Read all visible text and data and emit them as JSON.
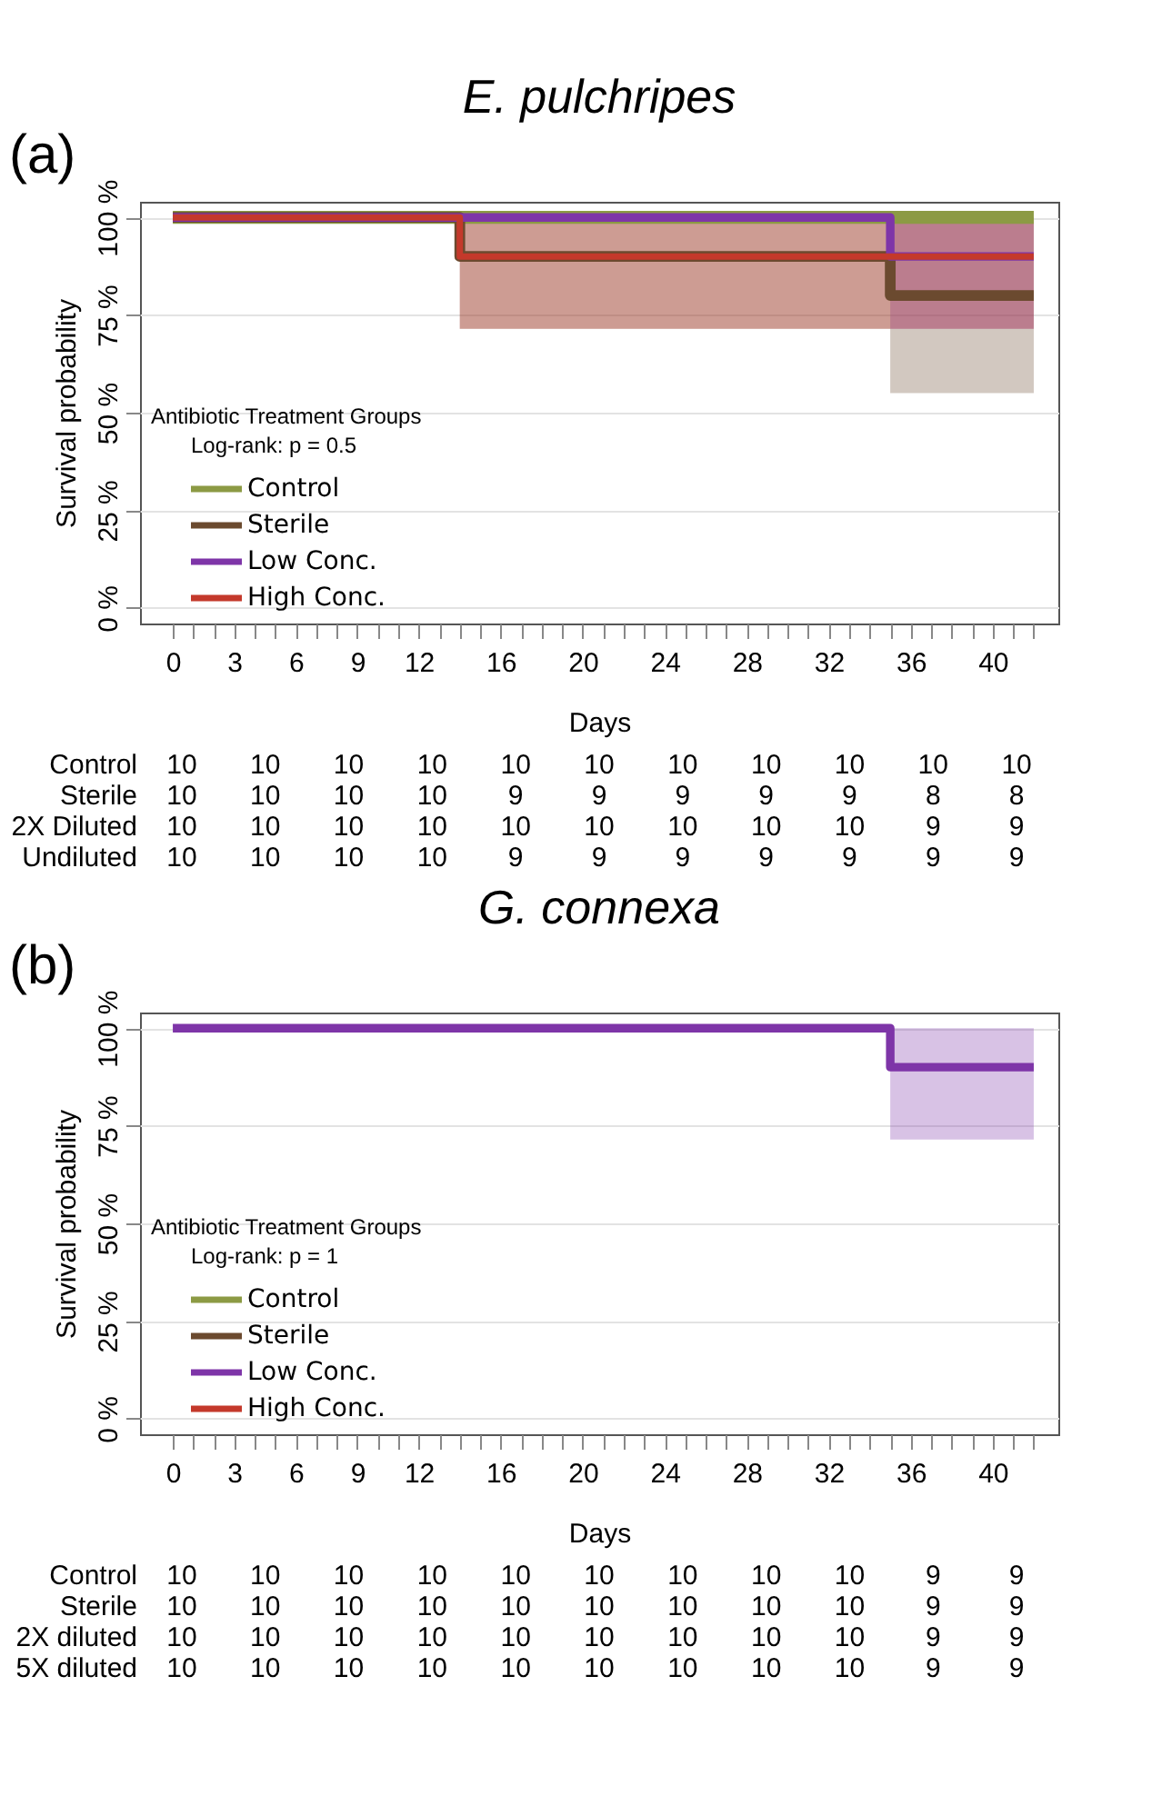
{
  "chart_data": [
    {
      "type": "step",
      "title": "E. pulchripes",
      "xlabel": "Days",
      "ylabel": "Survival probability",
      "legend_title": "Antibiotic Treatment Groups",
      "annotations": [
        "(a)",
        "Log-rank:  p = 0.5"
      ],
      "x": [
        0,
        14,
        35,
        42
      ],
      "series": [
        {
          "name": "Control",
          "color": "#8c9a44",
          "values": [
            100,
            100,
            100,
            100
          ]
        },
        {
          "name": "Sterile",
          "color": "#6b4a2f",
          "values": [
            100,
            90,
            80,
            80
          ],
          "lower": [
            null,
            71.5,
            55,
            55
          ],
          "upper": [
            null,
            100,
            100,
            100
          ]
        },
        {
          "name": "Low Conc.",
          "color": "#7e35a8",
          "values": [
            100,
            100,
            90,
            90
          ],
          "lower": [
            null,
            null,
            71.5,
            71.5
          ],
          "upper": [
            null,
            null,
            100,
            100
          ]
        },
        {
          "name": "High Conc.",
          "color": "#c4392b",
          "values": [
            100,
            90,
            90,
            90
          ],
          "lower": [
            null,
            71.5,
            71.5,
            71.5
          ],
          "upper": [
            null,
            100,
            100,
            100
          ]
        }
      ],
      "xlim": [
        -1.6,
        43.2
      ],
      "ylim": [
        -4,
        104
      ],
      "xticks": [
        0,
        {
          "value": 1,
          "label": null
        },
        {
          "value": 2,
          "label": null
        },
        3,
        {
          "value": 4,
          "label": null
        },
        {
          "value": 5,
          "label": null
        },
        6,
        {
          "value": 7,
          "label": null
        },
        {
          "value": 8,
          "label": null
        },
        9,
        {
          "value": 10,
          "label": null
        },
        {
          "value": 11,
          "label": null
        },
        12,
        {
          "value": 13,
          "label": null
        },
        {
          "value": 14,
          "label": null
        },
        {
          "value": 15,
          "label": null
        },
        16,
        {
          "value": 17,
          "label": null
        },
        {
          "value": 18,
          "label": null
        },
        {
          "value": 19,
          "label": null
        },
        20,
        {
          "value": 21,
          "label": null
        },
        {
          "value": 22,
          "label": null
        },
        {
          "value": 23,
          "label": null
        },
        24,
        {
          "value": 25,
          "label": null
        },
        {
          "value": 26,
          "label": null
        },
        {
          "value": 27,
          "label": null
        },
        28,
        {
          "value": 29,
          "label": null
        },
        {
          "value": 30,
          "label": null
        },
        {
          "value": 31,
          "label": null
        },
        32,
        {
          "value": 33,
          "label": null
        },
        {
          "value": 34,
          "label": null
        },
        {
          "value": 35,
          "label": null
        },
        36,
        {
          "value": 37,
          "label": null
        },
        {
          "value": 38,
          "label": null
        },
        {
          "value": 39,
          "label": null
        },
        40,
        {
          "value": 41,
          "label": null
        },
        {
          "value": 42,
          "label": null
        }
      ],
      "yticks": [
        {
          "value": 0,
          "label": "0 %"
        },
        {
          "value": 25,
          "label": "25 %"
        },
        {
          "value": 50,
          "label": "50 %"
        },
        {
          "value": 75,
          "label": "75 %"
        },
        {
          "value": 100,
          "label": "100 %"
        }
      ],
      "grid": "y",
      "legend": "bottom left"
    },
    {
      "type": "other",
      "y_categories": [
        "Control",
        "Sterile",
        "2X Diluted",
        "Undiluted"
      ],
      "cell_labels": [
        [
          "10",
          "10",
          "10",
          "10",
          "10",
          "10",
          "10",
          "10",
          "10",
          "10",
          "10"
        ],
        [
          "10",
          "10",
          "10",
          "10",
          "9",
          "9",
          "9",
          "9",
          "9",
          "8",
          "8"
        ],
        [
          "10",
          "10",
          "10",
          "10",
          "10",
          "10",
          "10",
          "10",
          "10",
          "9",
          "9"
        ],
        [
          "10",
          "10",
          "10",
          "10",
          "9",
          "9",
          "9",
          "9",
          "9",
          "9",
          "9"
        ]
      ]
    },
    {
      "type": "step",
      "title": "G. connexa",
      "xlabel": "Days",
      "ylabel": "Survival probability",
      "legend_title": "Antibiotic Treatment Groups",
      "annotations": [
        "(b)",
        "Log-rank:  p = 1"
      ],
      "x": [
        0,
        14,
        35,
        42
      ],
      "series": [
        {
          "name": "Control",
          "color": "#8c9a44",
          "values": [
            null,
            null,
            null,
            null
          ]
        },
        {
          "name": "Sterile",
          "color": "#6b4a2f",
          "values": [
            null,
            null,
            null,
            null
          ]
        },
        {
          "name": "Low Conc.",
          "color": "#7e35a8",
          "values": [
            100,
            100,
            90,
            90
          ],
          "lower": [
            null,
            null,
            71.5,
            71.5
          ],
          "upper": [
            null,
            null,
            100,
            100
          ]
        },
        {
          "name": "High Conc.",
          "color": "#c4392b",
          "values": [
            null,
            null,
            null,
            null
          ]
        }
      ],
      "xlim": [
        -1.6,
        43.2
      ],
      "ylim": [
        -4,
        104
      ],
      "xticks": [
        0,
        {
          "value": 1,
          "label": null
        },
        {
          "value": 2,
          "label": null
        },
        3,
        {
          "value": 4,
          "label": null
        },
        {
          "value": 5,
          "label": null
        },
        6,
        {
          "value": 7,
          "label": null
        },
        {
          "value": 8,
          "label": null
        },
        9,
        {
          "value": 10,
          "label": null
        },
        {
          "value": 11,
          "label": null
        },
        12,
        {
          "value": 13,
          "label": null
        },
        {
          "value": 14,
          "label": null
        },
        {
          "value": 15,
          "label": null
        },
        16,
        {
          "value": 17,
          "label": null
        },
        {
          "value": 18,
          "label": null
        },
        {
          "value": 19,
          "label": null
        },
        20,
        {
          "value": 21,
          "label": null
        },
        {
          "value": 22,
          "label": null
        },
        {
          "value": 23,
          "label": null
        },
        24,
        {
          "value": 25,
          "label": null
        },
        {
          "value": 26,
          "label": null
        },
        {
          "value": 27,
          "label": null
        },
        28,
        {
          "value": 29,
          "label": null
        },
        {
          "value": 30,
          "label": null
        },
        {
          "value": 31,
          "label": null
        },
        32,
        {
          "value": 33,
          "label": null
        },
        {
          "value": 34,
          "label": null
        },
        {
          "value": 35,
          "label": null
        },
        36,
        {
          "value": 37,
          "label": null
        },
        {
          "value": 38,
          "label": null
        },
        {
          "value": 39,
          "label": null
        },
        40,
        {
          "value": 41,
          "label": null
        },
        {
          "value": 42,
          "label": null
        }
      ],
      "yticks": [
        {
          "value": 0,
          "label": "0 %"
        },
        {
          "value": 25,
          "label": "25 %"
        },
        {
          "value": 50,
          "label": "50 %"
        },
        {
          "value": 75,
          "label": "75 %"
        },
        {
          "value": 100,
          "label": "100 %"
        }
      ],
      "grid": "y",
      "legend": "bottom left"
    },
    {
      "type": "other",
      "y_categories": [
        "Control",
        "Sterile",
        "2X diluted",
        "5X diluted"
      ],
      "cell_labels": [
        [
          "10",
          "10",
          "10",
          "10",
          "10",
          "10",
          "10",
          "10",
          "10",
          "9",
          "9"
        ],
        [
          "10",
          "10",
          "10",
          "10",
          "10",
          "10",
          "10",
          "10",
          "10",
          "9",
          "9"
        ],
        [
          "10",
          "10",
          "10",
          "10",
          "10",
          "10",
          "10",
          "10",
          "10",
          "9",
          "9"
        ],
        [
          "10",
          "10",
          "10",
          "10",
          "10",
          "10",
          "10",
          "10",
          "10",
          "9",
          "9"
        ]
      ]
    }
  ]
}
